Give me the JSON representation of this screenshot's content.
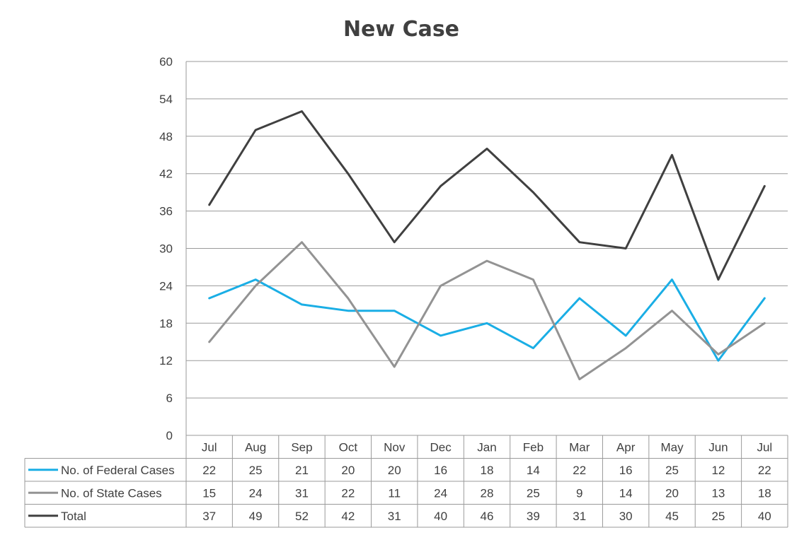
{
  "chart_data": {
    "type": "line",
    "title": "New Case",
    "categories": [
      "Jul",
      "Aug",
      "Sep",
      "Oct",
      "Nov",
      "Dec",
      "Jan",
      "Feb",
      "Mar",
      "Apr",
      "May",
      "Jun",
      "Jul"
    ],
    "ylim": [
      0,
      60
    ],
    "yticks": [
      0,
      6,
      12,
      18,
      24,
      30,
      36,
      42,
      48,
      54,
      60
    ],
    "grid": true,
    "legend": "data-table",
    "series": [
      {
        "name": "No. of Federal Cases",
        "color": "#1aaee5",
        "values": [
          22,
          25,
          21,
          20,
          20,
          16,
          18,
          14,
          22,
          16,
          25,
          12,
          22
        ]
      },
      {
        "name": "No. of State Cases",
        "color": "#939393",
        "values": [
          15,
          24,
          31,
          22,
          11,
          24,
          28,
          25,
          9,
          14,
          20,
          13,
          18
        ]
      },
      {
        "name": "Total",
        "color": "#404040",
        "values": [
          37,
          49,
          52,
          42,
          31,
          40,
          46,
          39,
          31,
          30,
          45,
          25,
          40
        ]
      }
    ]
  }
}
